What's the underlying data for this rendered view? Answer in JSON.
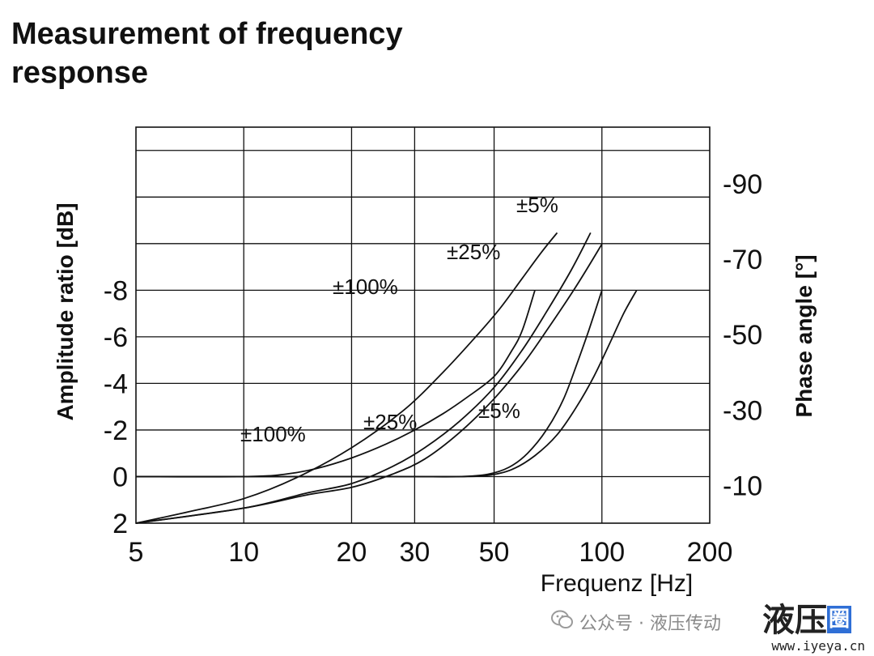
{
  "title": "Measurement of frequency response",
  "chart_data": {
    "type": "line",
    "title": "Measurement of frequency response",
    "xlabel": "Frequenz [Hz]",
    "ylabel_left": "Amplitude ratio [dB]",
    "ylabel_right": "Phase angle [°]",
    "x_scale": "log",
    "xlim": [
      5,
      200
    ],
    "ylim_left": [
      -15,
      2
    ],
    "ylim_right": [
      0,
      -105
    ],
    "x_ticks": [
      5,
      10,
      20,
      30,
      50,
      100,
      200
    ],
    "x_tick_labels": [
      "5",
      "10",
      "20",
      "30",
      "50",
      "100",
      "200"
    ],
    "y_left_ticks": [
      2,
      0,
      -2,
      -4,
      -6,
      -8
    ],
    "y_left_tick_labels": [
      "2",
      "0",
      "-2",
      "-4",
      "-6",
      "-8"
    ],
    "y_right_ticks": [
      -90,
      -70,
      -50,
      -30,
      -10
    ],
    "y_right_tick_labels": [
      "-90",
      "-70",
      "-50",
      "-30",
      "-10"
    ],
    "x_gridlines": [
      10,
      20,
      30,
      50,
      100
    ],
    "y_gridlines": [
      0,
      -2,
      -4,
      -6,
      -8,
      -10,
      -12,
      -14
    ],
    "grid": true,
    "amplitude_series": [
      {
        "name": "±100%",
        "x": [
          5,
          10,
          13,
          16,
          20,
          25,
          30,
          36,
          42,
          50,
          56,
          60,
          65
        ],
        "y": [
          0,
          0,
          -0.1,
          -0.35,
          -0.8,
          -1.4,
          -2.0,
          -2.7,
          -3.4,
          -4.3,
          -5.4,
          -6.3,
          -8.0
        ]
      },
      {
        "name": "±25%",
        "x": [
          5,
          10,
          20,
          30,
          40,
          48,
          55,
          62,
          70,
          78,
          85,
          92,
          100
        ],
        "y": [
          0,
          0,
          0,
          0,
          0,
          -0.1,
          -0.4,
          -1.0,
          -2.0,
          -3.3,
          -4.8,
          -6.3,
          -8.0
        ]
      },
      {
        "name": "±5%",
        "x": [
          5,
          10,
          20,
          30,
          40,
          48,
          56,
          65,
          75,
          85,
          95,
          105,
          115,
          125
        ],
        "y": [
          0,
          0,
          0,
          0,
          0,
          -0.05,
          -0.3,
          -0.9,
          -1.8,
          -3.0,
          -4.3,
          -5.7,
          -7.0,
          -8.0
        ]
      }
    ],
    "phase_series": [
      {
        "name": "±100%",
        "x": [
          5,
          7,
          10,
          14,
          20,
          28,
          36,
          45,
          52,
          60,
          68,
          75
        ],
        "y": [
          0,
          -3,
          -6.5,
          -12,
          -20,
          -30,
          -40,
          -50,
          -57,
          -65,
          -72,
          -77
        ]
      },
      {
        "name": "±25%",
        "x": [
          5,
          10,
          15,
          20,
          26,
          32,
          40,
          50,
          60,
          70,
          82,
          93
        ],
        "y": [
          0,
          -4,
          -8,
          -10.5,
          -15,
          -20,
          -27,
          -36,
          -46,
          -56,
          -67,
          -77
        ]
      },
      {
        "name": "±5%",
        "x": [
          5,
          10,
          15,
          20,
          26,
          32,
          40,
          50,
          60,
          70,
          85,
          100
        ],
        "y": [
          0,
          -4,
          -7.5,
          -9.5,
          -13,
          -17,
          -24,
          -33,
          -42,
          -51,
          -63,
          -74
        ]
      }
    ],
    "curve_labels": {
      "amp_100": "±100%",
      "amp_25": "±25%",
      "amp_5": "±5%",
      "phase_100": "±100%",
      "phase_25": "±25%",
      "phase_5": "±5%"
    }
  },
  "watermark": {
    "text": "公众号 · 液压传动",
    "logo": "液压",
    "logo_tag": "圈",
    "url": "www.iyeya.cn"
  }
}
